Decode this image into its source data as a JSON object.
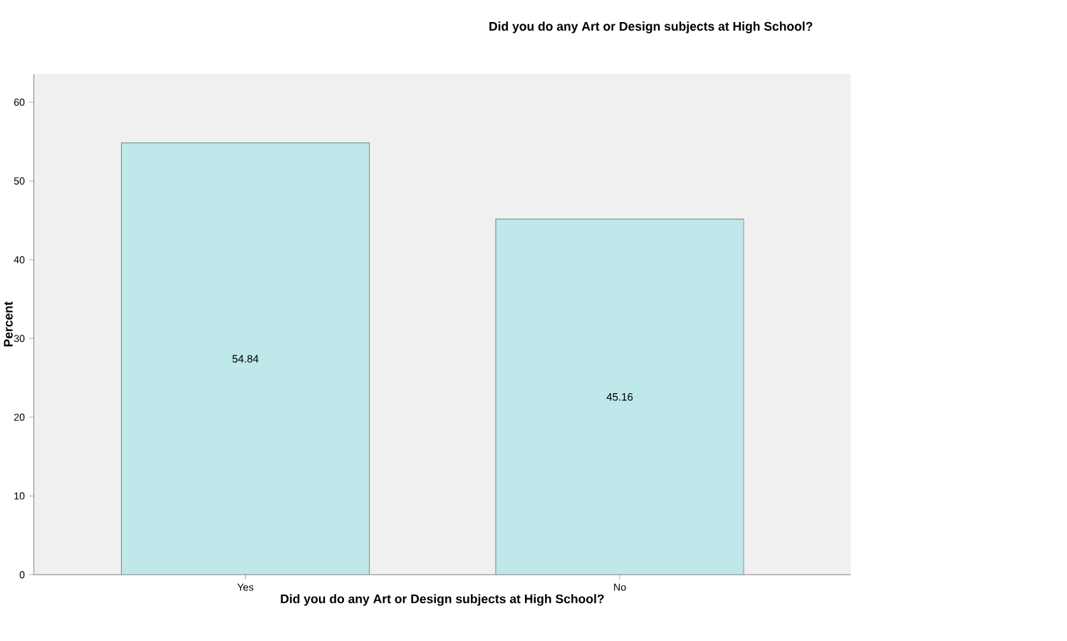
{
  "chart_data": {
    "type": "bar",
    "title": "Did you do any Art or Design subjects at High School?",
    "xlabel": "Did you do any Art or Design subjects at High School?",
    "ylabel": "Percent",
    "categories": [
      "Yes",
      "No"
    ],
    "values": [
      54.84,
      45.16
    ],
    "color": "#bfe8ea",
    "ylim": [
      0,
      63.6
    ],
    "yticks": [
      0,
      10,
      20,
      30,
      40,
      50,
      60
    ],
    "grid": false,
    "data_labels": true
  }
}
